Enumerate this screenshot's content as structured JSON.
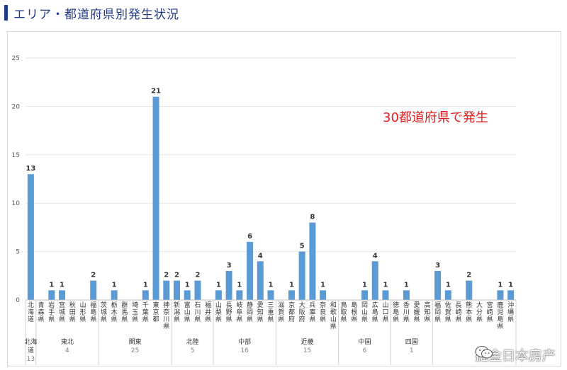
{
  "header": {
    "title": "エリア・都道府県別発生状況"
  },
  "annotation": {
    "text": "30都道府県で発生",
    "color": "#e02020"
  },
  "watermark": {
    "text": "掘金日本房产"
  },
  "colors": {
    "bar": "#5b9bd5",
    "grid": "#e6e6e6",
    "label": "#333333",
    "axis": "#595959"
  },
  "chart_data": {
    "type": "bar",
    "ylim": [
      0,
      25
    ],
    "yticks": [
      0,
      5,
      10,
      15,
      20,
      25
    ],
    "grid": true,
    "categories": [
      "北海道",
      "青森県",
      "岩手県",
      "宮城県",
      "秋田県",
      "山形県",
      "福島県",
      "茨城県",
      "栃木県",
      "群馬県",
      "埼玉県",
      "千葉県",
      "東京都",
      "神奈川県",
      "新潟県",
      "富山県",
      "石川県",
      "福井県",
      "山梨県",
      "長野県",
      "岐阜県",
      "静岡県",
      "愛知県",
      "三重県",
      "滋賀県",
      "京都府",
      "大阪府",
      "兵庫県",
      "奈良県",
      "和歌山県",
      "鳥取県",
      "島根県",
      "岡山県",
      "広島県",
      "山口県",
      "徳島県",
      "香川県",
      "愛媛県",
      "高知県",
      "福岡県",
      "佐賀県",
      "長崎県",
      "熊本県",
      "大分県",
      "宮崎県",
      "鹿児島県",
      "沖縄県"
    ],
    "values": [
      13,
      0,
      1,
      1,
      0,
      0,
      2,
      0,
      1,
      0,
      0,
      1,
      21,
      2,
      2,
      1,
      2,
      0,
      1,
      3,
      1,
      6,
      4,
      1,
      0,
      1,
      5,
      8,
      1,
      0,
      0,
      0,
      1,
      4,
      1,
      0,
      1,
      0,
      0,
      3,
      1,
      0,
      2,
      0,
      0,
      1,
      1
    ],
    "regions": [
      {
        "name": "北海道",
        "total": "13",
        "start": 0,
        "end": 0
      },
      {
        "name": "東北",
        "total": "4",
        "start": 1,
        "end": 6
      },
      {
        "name": "関東",
        "total": "25",
        "start": 7,
        "end": 13
      },
      {
        "name": "北陸",
        "total": "5",
        "start": 14,
        "end": 17
      },
      {
        "name": "中部",
        "total": "16",
        "start": 18,
        "end": 23
      },
      {
        "name": "近畿",
        "total": "15",
        "start": 24,
        "end": 29
      },
      {
        "name": "中国",
        "total": "6",
        "start": 30,
        "end": 34
      },
      {
        "name": "四国",
        "total": "1",
        "start": 35,
        "end": 38
      },
      {
        "name": "",
        "total": "",
        "start": 39,
        "end": 46
      }
    ]
  }
}
